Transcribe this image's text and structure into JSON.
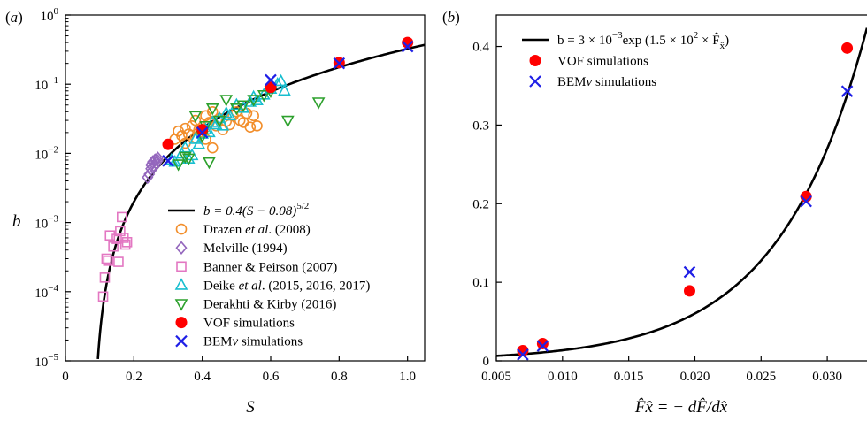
{
  "chart_data": [
    {
      "type": "scatter",
      "panel_label": "(a)",
      "xlabel": "S",
      "ylabel": "b",
      "xlim": [
        0,
        1.05
      ],
      "ylim": [
        1e-05,
        1
      ],
      "yscale": "log",
      "x_ticks": [
        0,
        0.2,
        0.4,
        0.6,
        0.8,
        1.0
      ],
      "x_tick_labels": [
        "0",
        "0.2",
        "0.4",
        "0.6",
        "0.8",
        "1.0"
      ],
      "y_ticks": [
        1e-05,
        0.0001,
        0.001,
        0.01,
        0.1,
        1
      ],
      "y_tick_exponents": [
        "−5",
        "−4",
        "−3",
        "−2",
        "−1",
        "0"
      ],
      "legend_position": "lower-right",
      "fit": {
        "label_prefix": "b = 0.4(S − 0.08)",
        "label_exponent": "5/2",
        "a": 0.4,
        "s0": 0.08,
        "power": 2.5,
        "color": "#000000"
      },
      "series": [
        {
          "name": "Drazen et al. (2008)",
          "name_parts": [
            "Drazen ",
            "et al",
            ". (2008)"
          ],
          "marker": "circle-open",
          "color": "#f28e2b",
          "points": [
            [
              0.32,
              0.016
            ],
            [
              0.33,
              0.021
            ],
            [
              0.34,
              0.018
            ],
            [
              0.35,
              0.023
            ],
            [
              0.35,
              0.014
            ],
            [
              0.36,
              0.019
            ],
            [
              0.37,
              0.025
            ],
            [
              0.38,
              0.017
            ],
            [
              0.38,
              0.03
            ],
            [
              0.39,
              0.022
            ],
            [
              0.4,
              0.02
            ],
            [
              0.41,
              0.035
            ],
            [
              0.41,
              0.016
            ],
            [
              0.42,
              0.028
            ],
            [
              0.43,
              0.04
            ],
            [
              0.43,
              0.012
            ],
            [
              0.44,
              0.025
            ],
            [
              0.45,
              0.032
            ],
            [
              0.46,
              0.022
            ],
            [
              0.47,
              0.029
            ],
            [
              0.48,
              0.026
            ],
            [
              0.49,
              0.035
            ],
            [
              0.5,
              0.04
            ],
            [
              0.51,
              0.03
            ],
            [
              0.52,
              0.028
            ],
            [
              0.53,
              0.038
            ],
            [
              0.54,
              0.024
            ],
            [
              0.55,
              0.035
            ],
            [
              0.56,
              0.025
            ]
          ]
        },
        {
          "name": "Melville (1994)",
          "marker": "diamond-open",
          "color": "#9467bd",
          "points": [
            [
              0.24,
              0.0045
            ],
            [
              0.245,
              0.005
            ],
            [
              0.25,
              0.006
            ],
            [
              0.25,
              0.0068
            ],
            [
              0.255,
              0.0075
            ],
            [
              0.26,
              0.0065
            ],
            [
              0.262,
              0.008
            ],
            [
              0.265,
              0.0072
            ],
            [
              0.27,
              0.0078
            ],
            [
              0.27,
              0.0085
            ]
          ]
        },
        {
          "name": "Banner & Peirson (2007)",
          "marker": "square-open",
          "color": "#e377c2",
          "points": [
            [
              0.11,
              8.5e-05
            ],
            [
              0.115,
              0.00016
            ],
            [
              0.12,
              0.0003
            ],
            [
              0.125,
              0.00028
            ],
            [
              0.13,
              0.00065
            ],
            [
              0.14,
              0.00045
            ],
            [
              0.15,
              0.00058
            ],
            [
              0.155,
              0.00027
            ],
            [
              0.16,
              0.00075
            ],
            [
              0.165,
              0.0012
            ],
            [
              0.17,
              0.0006
            ],
            [
              0.175,
              0.00048
            ],
            [
              0.18,
              0.00052
            ]
          ]
        },
        {
          "name": "Deike et al. (2015, 2016, 2017)",
          "name_parts": [
            "Deike ",
            "et al",
            ". (2015, 2016, 2017)"
          ],
          "marker": "triangle-up-open",
          "color": "#17becf",
          "points": [
            [
              0.31,
              0.008
            ],
            [
              0.32,
              0.0075
            ],
            [
              0.34,
              0.0098
            ],
            [
              0.35,
              0.012
            ],
            [
              0.36,
              0.0083
            ],
            [
              0.37,
              0.0093
            ],
            [
              0.38,
              0.016
            ],
            [
              0.39,
              0.0135
            ],
            [
              0.4,
              0.019
            ],
            [
              0.41,
              0.022
            ],
            [
              0.42,
              0.02
            ],
            [
              0.43,
              0.028
            ],
            [
              0.44,
              0.026
            ],
            [
              0.45,
              0.032
            ],
            [
              0.46,
              0.025
            ],
            [
              0.47,
              0.038
            ],
            [
              0.48,
              0.035
            ],
            [
              0.5,
              0.05
            ],
            [
              0.52,
              0.045
            ],
            [
              0.54,
              0.055
            ],
            [
              0.55,
              0.065
            ],
            [
              0.56,
              0.058
            ],
            [
              0.58,
              0.07
            ],
            [
              0.6,
              0.085
            ],
            [
              0.62,
              0.1
            ],
            [
              0.63,
              0.11
            ],
            [
              0.64,
              0.08
            ]
          ]
        },
        {
          "name": "Derakhti & Kirby (2016)",
          "marker": "triangle-down-open",
          "color": "#2ca02c",
          "points": [
            [
              0.33,
              0.007
            ],
            [
              0.35,
              0.009
            ],
            [
              0.36,
              0.0085
            ],
            [
              0.38,
              0.035
            ],
            [
              0.4,
              0.018
            ],
            [
              0.41,
              0.025
            ],
            [
              0.42,
              0.0075
            ],
            [
              0.43,
              0.045
            ],
            [
              0.45,
              0.03
            ],
            [
              0.47,
              0.06
            ],
            [
              0.5,
              0.045
            ],
            [
              0.52,
              0.05
            ],
            [
              0.55,
              0.06
            ],
            [
              0.58,
              0.07
            ],
            [
              0.6,
              0.08
            ],
            [
              0.65,
              0.03
            ],
            [
              0.74,
              0.055
            ]
          ]
        },
        {
          "name": "VOF simulations",
          "marker": "circle-filled",
          "color": "#ff0000",
          "points": [
            [
              0.3,
              0.0135
            ],
            [
              0.4,
              0.022
            ],
            [
              0.6,
              0.09
            ],
            [
              0.8,
              0.205
            ],
            [
              1.0,
              0.4
            ]
          ]
        },
        {
          "name": "BEMν simulations",
          "name_parts": [
            "BEM",
            "ν",
            " simulations"
          ],
          "marker": "x",
          "color": "#1f1fe6",
          "points": [
            [
              0.3,
              0.0078
            ],
            [
              0.4,
              0.02
            ],
            [
              0.6,
              0.115
            ],
            [
              0.8,
              0.2
            ],
            [
              1.0,
              0.35
            ]
          ]
        }
      ]
    },
    {
      "type": "scatter",
      "panel_label": "(b)",
      "xlabel": "F̂x̂ = − dF̂/dx̂",
      "ylabel": "",
      "xlim": [
        0.005,
        0.033
      ],
      "ylim": [
        0,
        0.44
      ],
      "yscale": "linear",
      "x_ticks": [
        0.005,
        0.01,
        0.015,
        0.02,
        0.025,
        0.03
      ],
      "x_tick_labels": [
        "0.005",
        "0.010",
        "0.015",
        "0.020",
        "0.025",
        "0.030"
      ],
      "y_ticks": [
        0,
        0.1,
        0.2,
        0.3,
        0.4
      ],
      "y_tick_labels": [
        "0",
        "0.1",
        "0.2",
        "0.3",
        "0.4"
      ],
      "legend_position": "top-left",
      "fit": {
        "label_prefix": "b = 3 × 10",
        "label_exp1": "−3",
        "label_mid": "exp (1.5 × 10",
        "label_exp2": "2",
        "label_suffix": " × F̂",
        "label_sub": "x̂",
        "label_end": ")",
        "a": 0.003,
        "k": 150,
        "color": "#000000"
      },
      "series": [
        {
          "name": "VOF simulations",
          "marker": "circle-filled",
          "color": "#ff0000",
          "points": [
            [
              0.007,
              0.013
            ],
            [
              0.0085,
              0.022
            ],
            [
              0.0196,
              0.089
            ],
            [
              0.0284,
              0.209
            ],
            [
              0.0315,
              0.398
            ]
          ]
        },
        {
          "name": "BEMν simulations",
          "name_parts": [
            "BEM",
            "ν",
            " simulations"
          ],
          "marker": "x",
          "color": "#1f1fe6",
          "points": [
            [
              0.007,
              0.008
            ],
            [
              0.0085,
              0.019
            ],
            [
              0.0196,
              0.113
            ],
            [
              0.0284,
              0.203
            ],
            [
              0.0315,
              0.343
            ]
          ]
        }
      ]
    }
  ]
}
